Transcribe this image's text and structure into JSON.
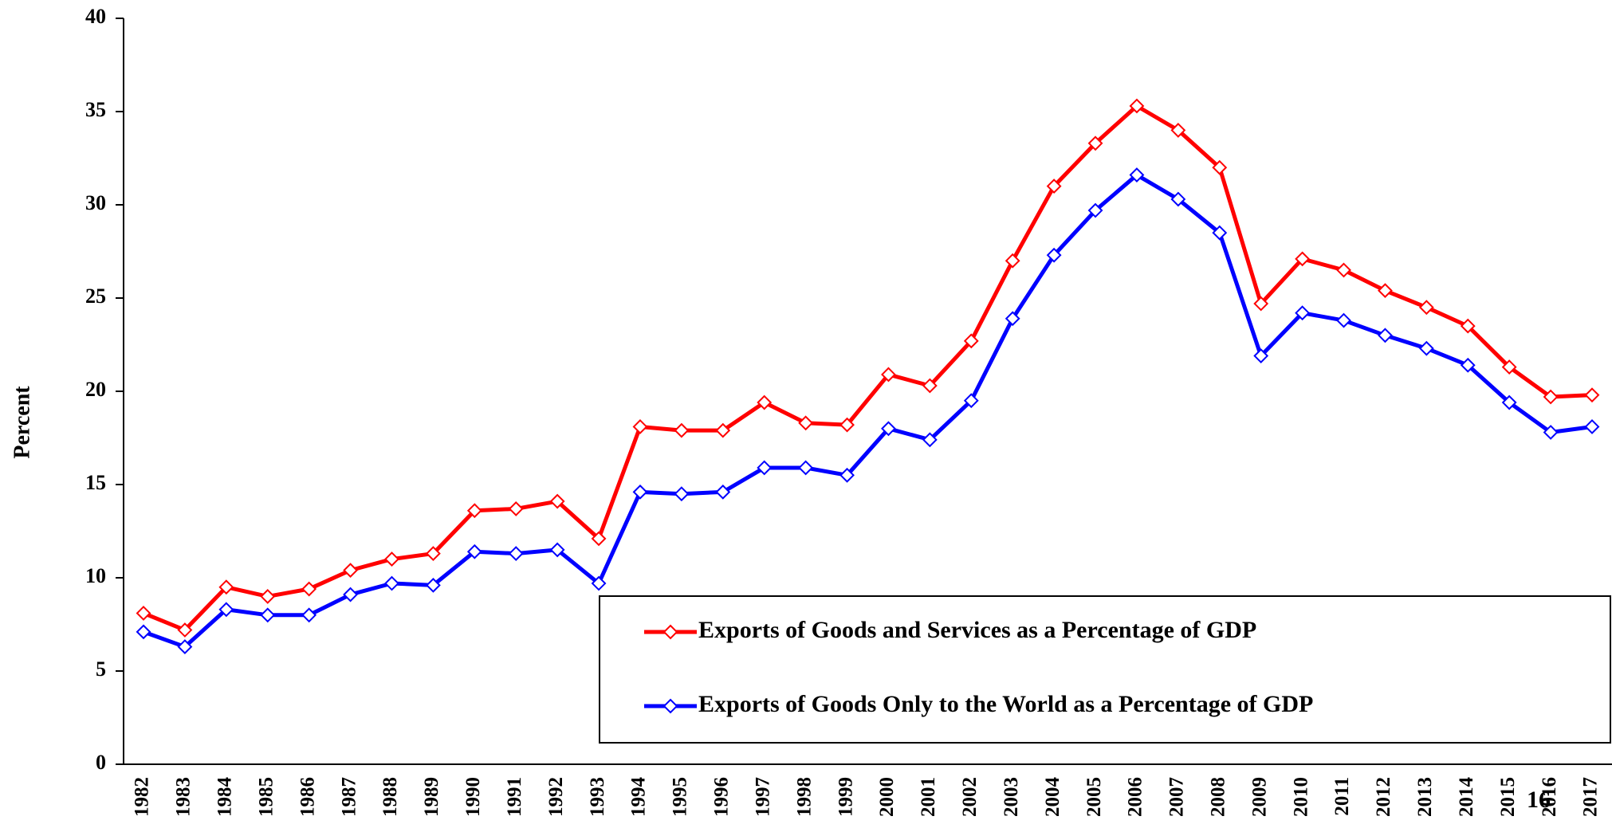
{
  "chart_data": {
    "type": "line",
    "y_label": "Percent",
    "categories": [
      "1982",
      "1983",
      "1984",
      "1985",
      "1986",
      "1987",
      "1988",
      "1989",
      "1990",
      "1991",
      "1992",
      "1993",
      "1994",
      "1995",
      "1996",
      "1997",
      "1998",
      "1999",
      "2000",
      "2001",
      "2002",
      "2003",
      "2004",
      "2005",
      "2006",
      "2007",
      "2008",
      "2009",
      "2010",
      "2011",
      "2012",
      "2013",
      "2014",
      "2015",
      "2016",
      "2017"
    ],
    "series": [
      {
        "name": "Exports of Goods and Services as a Percentage of GDP",
        "color": "#ff0000",
        "values": [
          8.1,
          7.2,
          9.5,
          9.0,
          9.4,
          10.4,
          11.0,
          11.3,
          13.6,
          13.7,
          14.1,
          12.1,
          18.1,
          17.9,
          17.9,
          19.4,
          18.3,
          18.2,
          20.9,
          20.3,
          22.7,
          27.0,
          31.0,
          33.3,
          35.3,
          34.0,
          32.0,
          24.7,
          27.1,
          26.5,
          25.4,
          24.5,
          23.5,
          21.3,
          19.7,
          19.8
        ]
      },
      {
        "name": "Exports of Goods Only to the World as a Percentage of GDP",
        "color": "#0000ff",
        "values": [
          7.1,
          6.3,
          8.3,
          8.0,
          8.0,
          9.1,
          9.7,
          9.6,
          11.4,
          11.3,
          11.5,
          9.7,
          14.6,
          14.5,
          14.6,
          15.9,
          15.9,
          15.5,
          18.0,
          17.4,
          19.5,
          23.9,
          27.3,
          29.7,
          31.6,
          30.3,
          28.5,
          21.9,
          24.2,
          23.8,
          23.0,
          22.3,
          21.4,
          19.4,
          17.8,
          18.1
        ]
      }
    ],
    "ylim": [
      0,
      40
    ],
    "yticks": [
      0,
      5,
      10,
      15,
      20,
      25,
      30,
      35,
      40
    ],
    "legend": "lower right",
    "page_number": "16"
  }
}
